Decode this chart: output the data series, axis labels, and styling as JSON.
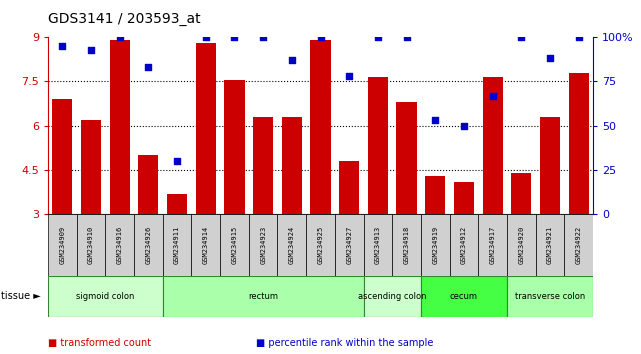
{
  "title": "GDS3141 / 203593_at",
  "samples": [
    "GSM234909",
    "GSM234910",
    "GSM234916",
    "GSM234926",
    "GSM234911",
    "GSM234914",
    "GSM234915",
    "GSM234923",
    "GSM234924",
    "GSM234925",
    "GSM234927",
    "GSM234913",
    "GSM234918",
    "GSM234919",
    "GSM234912",
    "GSM234917",
    "GSM234920",
    "GSM234921",
    "GSM234922"
  ],
  "bar_values": [
    6.9,
    6.2,
    8.9,
    5.0,
    3.7,
    8.8,
    7.55,
    6.3,
    6.3,
    8.9,
    4.8,
    7.65,
    6.8,
    4.3,
    4.1,
    7.65,
    4.4,
    6.3,
    7.8
  ],
  "dot_values": [
    95,
    93,
    100,
    83,
    30,
    100,
    100,
    100,
    87,
    100,
    78,
    100,
    100,
    53,
    50,
    67,
    100,
    88,
    100
  ],
  "ylim_left": [
    3,
    9
  ],
  "ylim_right": [
    0,
    100
  ],
  "yticks_left": [
    3,
    4.5,
    6,
    7.5,
    9
  ],
  "yticks_right": [
    0,
    25,
    50,
    75,
    100
  ],
  "ytick_labels_left": [
    "3",
    "4.5",
    "6",
    "7.5",
    "9"
  ],
  "ytick_labels_right": [
    "0",
    "25",
    "50",
    "75",
    "100%"
  ],
  "bar_color": "#cc0000",
  "dot_color": "#0000cc",
  "tissue_groups": [
    {
      "label": "sigmoid colon",
      "start": 0,
      "end": 3,
      "color": "#ccffcc"
    },
    {
      "label": "rectum",
      "start": 4,
      "end": 10,
      "color": "#aaffaa"
    },
    {
      "label": "ascending colon",
      "start": 11,
      "end": 12,
      "color": "#ccffcc"
    },
    {
      "label": "cecum",
      "start": 13,
      "end": 15,
      "color": "#44ff44"
    },
    {
      "label": "transverse colon",
      "start": 16,
      "end": 18,
      "color": "#aaffaa"
    }
  ],
  "legend_items": [
    {
      "label": "transformed count",
      "color": "#cc0000"
    },
    {
      "label": "percentile rank within the sample",
      "color": "#0000cc"
    }
  ],
  "left_axis_color": "#cc0000",
  "right_axis_color": "#0000cc",
  "background_color": "#ffffff",
  "sample_box_color": "#d0d0d0",
  "tissue_border_color": "#338833",
  "grid_dotted_values": [
    4.5,
    6.0,
    7.5
  ]
}
